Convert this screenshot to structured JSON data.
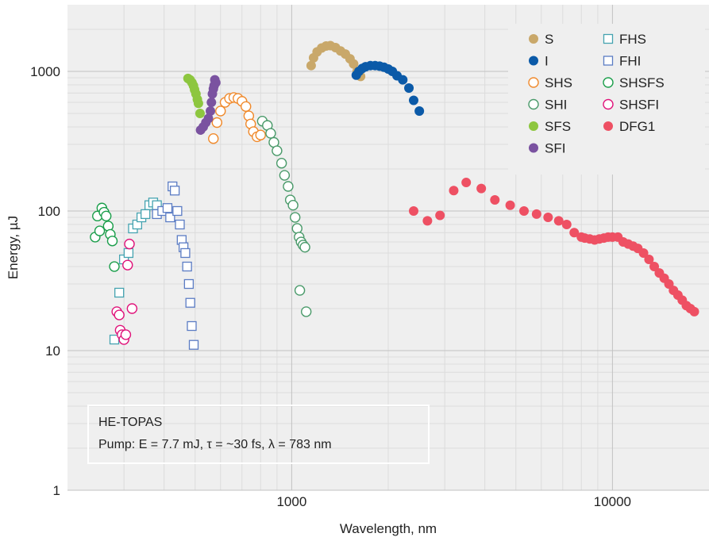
{
  "chart_data": {
    "type": "scatter",
    "title": "",
    "xlabel": "Wavelength, nm",
    "ylabel": "Energy, µJ",
    "xscale": "log",
    "yscale": "log",
    "xlim": [
      200,
      20000
    ],
    "ylim": [
      1,
      3000
    ],
    "xticks": [
      1000,
      10000
    ],
    "xtick_labels": [
      "1000",
      "10000"
    ],
    "yticks": [
      1,
      10,
      100,
      1000
    ],
    "ytick_labels": [
      "1",
      "10",
      "100",
      "1000"
    ],
    "grid": true,
    "legend_position": "top-right",
    "annotation": {
      "line1": "HE-TOPAS",
      "line2": "Pump: E = 7.7 mJ, τ = ~30 fs, λ = 783 nm"
    },
    "series": [
      {
        "name": "S",
        "marker": "circle",
        "filled": true,
        "color": "#c9a86a",
        "points": [
          [
            1150,
            1100
          ],
          [
            1170,
            1250
          ],
          [
            1200,
            1380
          ],
          [
            1240,
            1470
          ],
          [
            1280,
            1520
          ],
          [
            1320,
            1530
          ],
          [
            1370,
            1480
          ],
          [
            1420,
            1400
          ],
          [
            1470,
            1330
          ],
          [
            1520,
            1230
          ],
          [
            1560,
            1130
          ],
          [
            1600,
            1000
          ],
          [
            1640,
            920
          ]
        ]
      },
      {
        "name": "I",
        "marker": "circle",
        "filled": true,
        "color": "#0b5aa8",
        "points": [
          [
            1590,
            940
          ],
          [
            1620,
            1000
          ],
          [
            1660,
            1050
          ],
          [
            1700,
            1080
          ],
          [
            1760,
            1100
          ],
          [
            1820,
            1100
          ],
          [
            1880,
            1090
          ],
          [
            1940,
            1070
          ],
          [
            2000,
            1040
          ],
          [
            2060,
            1000
          ],
          [
            2130,
            930
          ],
          [
            2220,
            870
          ],
          [
            2320,
            760
          ],
          [
            2400,
            620
          ],
          [
            2500,
            520
          ]
        ]
      },
      {
        "name": "SHS",
        "marker": "circle",
        "filled": false,
        "color": "#f08a2c",
        "points": [
          [
            570,
            330
          ],
          [
            585,
            430
          ],
          [
            600,
            520
          ],
          [
            620,
            600
          ],
          [
            640,
            640
          ],
          [
            660,
            650
          ],
          [
            680,
            640
          ],
          [
            700,
            610
          ],
          [
            720,
            560
          ],
          [
            735,
            480
          ],
          [
            745,
            420
          ],
          [
            760,
            370
          ],
          [
            780,
            340
          ],
          [
            800,
            350
          ]
        ]
      },
      {
        "name": "SHI",
        "marker": "circle",
        "filled": false,
        "color": "#4a9a6a",
        "points": [
          [
            810,
            440
          ],
          [
            840,
            410
          ],
          [
            860,
            360
          ],
          [
            880,
            310
          ],
          [
            900,
            270
          ],
          [
            930,
            220
          ],
          [
            950,
            180
          ],
          [
            975,
            150
          ],
          [
            990,
            120
          ],
          [
            1010,
            110
          ],
          [
            1025,
            90
          ],
          [
            1040,
            75
          ],
          [
            1055,
            65
          ],
          [
            1070,
            60
          ],
          [
            1085,
            57
          ],
          [
            1100,
            55
          ],
          [
            1060,
            27
          ],
          [
            1110,
            19
          ]
        ]
      },
      {
        "name": "SFS",
        "marker": "circle",
        "filled": true,
        "color": "#8dc63f",
        "points": [
          [
            475,
            890
          ],
          [
            482,
            870
          ],
          [
            489,
            830
          ],
          [
            494,
            790
          ],
          [
            498,
            740
          ],
          [
            503,
            690
          ],
          [
            508,
            630
          ],
          [
            512,
            590
          ],
          [
            518,
            500
          ]
        ]
      },
      {
        "name": "SFI",
        "marker": "circle",
        "filled": true,
        "color": "#7a52a0",
        "points": [
          [
            520,
            380
          ],
          [
            530,
            400
          ],
          [
            540,
            430
          ],
          [
            550,
            460
          ],
          [
            558,
            520
          ],
          [
            562,
            600
          ],
          [
            566,
            690
          ],
          [
            570,
            750
          ],
          [
            573,
            790
          ],
          [
            576,
            870
          ],
          [
            580,
            830
          ]
        ]
      },
      {
        "name": "FHS",
        "marker": "square",
        "filled": false,
        "color": "#45a3b0",
        "points": [
          [
            280,
            12
          ],
          [
            290,
            26
          ],
          [
            300,
            45
          ],
          [
            310,
            50
          ],
          [
            320,
            75
          ],
          [
            330,
            80
          ],
          [
            340,
            90
          ],
          [
            350,
            95
          ],
          [
            360,
            110
          ],
          [
            370,
            115
          ],
          [
            380,
            110
          ]
        ]
      },
      {
        "name": "FHI",
        "marker": "square",
        "filled": false,
        "color": "#5b7cc4",
        "points": [
          [
            380,
            95
          ],
          [
            395,
            100
          ],
          [
            410,
            105
          ],
          [
            418,
            90
          ],
          [
            425,
            150
          ],
          [
            432,
            140
          ],
          [
            440,
            100
          ],
          [
            448,
            80
          ],
          [
            454,
            62
          ],
          [
            460,
            55
          ],
          [
            466,
            50
          ],
          [
            472,
            40
          ],
          [
            478,
            30
          ],
          [
            483,
            22
          ],
          [
            488,
            15
          ],
          [
            495,
            11
          ]
        ]
      },
      {
        "name": "SHSFS",
        "marker": "circle",
        "filled": false,
        "color": "#1a9e4a",
        "points": [
          [
            244,
            65
          ],
          [
            248,
            92
          ],
          [
            252,
            72
          ],
          [
            256,
            105
          ],
          [
            260,
            98
          ],
          [
            264,
            92
          ],
          [
            268,
            78
          ],
          [
            272,
            68
          ],
          [
            276,
            61
          ],
          [
            280,
            40
          ]
        ]
      },
      {
        "name": "SHSFI",
        "marker": "circle",
        "filled": false,
        "color": "#e0137a",
        "points": [
          [
            285,
            19
          ],
          [
            290,
            18
          ],
          [
            292,
            14
          ],
          [
            296,
            13
          ],
          [
            300,
            12
          ],
          [
            304,
            13
          ],
          [
            308,
            41
          ],
          [
            312,
            58
          ],
          [
            318,
            20
          ]
        ]
      },
      {
        "name": "DFG1",
        "marker": "circle",
        "filled": true,
        "color": "#ee5063",
        "points": [
          [
            2400,
            100
          ],
          [
            2650,
            85
          ],
          [
            2900,
            93
          ],
          [
            3200,
            140
          ],
          [
            3500,
            160
          ],
          [
            3900,
            145
          ],
          [
            4300,
            120
          ],
          [
            4800,
            110
          ],
          [
            5300,
            100
          ],
          [
            5800,
            95
          ],
          [
            6300,
            90
          ],
          [
            6800,
            85
          ],
          [
            7200,
            80
          ],
          [
            7600,
            70
          ],
          [
            8000,
            65
          ],
          [
            8200,
            64
          ],
          [
            8500,
            63
          ],
          [
            8800,
            62
          ],
          [
            9100,
            63
          ],
          [
            9400,
            64
          ],
          [
            9700,
            65
          ],
          [
            10000,
            65
          ],
          [
            10400,
            65
          ],
          [
            10800,
            60
          ],
          [
            11200,
            58
          ],
          [
            11600,
            56
          ],
          [
            12000,
            54
          ],
          [
            12500,
            50
          ],
          [
            13000,
            45
          ],
          [
            13500,
            40
          ],
          [
            14000,
            36
          ],
          [
            14500,
            33
          ],
          [
            15000,
            30
          ],
          [
            15500,
            27
          ],
          [
            16000,
            25
          ],
          [
            16500,
            23
          ],
          [
            17000,
            21
          ],
          [
            17500,
            20
          ],
          [
            18000,
            19
          ]
        ]
      }
    ]
  }
}
